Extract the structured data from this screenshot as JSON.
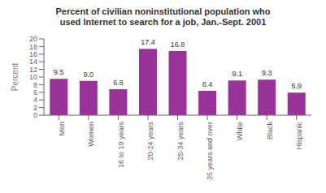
{
  "chart_data": {
    "type": "bar",
    "title": "Percent of civilian noninstitutional population who\nused Internet to search for a job, Jan.-Sept. 2001",
    "categories": [
      "Men",
      "Women",
      "16 to 19 years",
      "20-24 years",
      "25-34 years",
      "35 years and over",
      "White",
      "Black",
      "Hispanic"
    ],
    "values": [
      9.5,
      9.0,
      6.8,
      17.4,
      16.8,
      6.4,
      9.1,
      9.3,
      5.9
    ],
    "value_labels": [
      "9.5",
      "9.0",
      "6.8",
      "17.4",
      "16.8",
      "6.4",
      "9.1",
      "9.3",
      "5.9"
    ],
    "color": "#993399",
    "ylabel": "Percent",
    "ylim": [
      0,
      20
    ],
    "yticks": [
      0,
      2,
      4,
      6,
      8,
      10,
      12,
      14,
      16,
      18,
      20
    ],
    "grid": false,
    "data_labels": true
  }
}
